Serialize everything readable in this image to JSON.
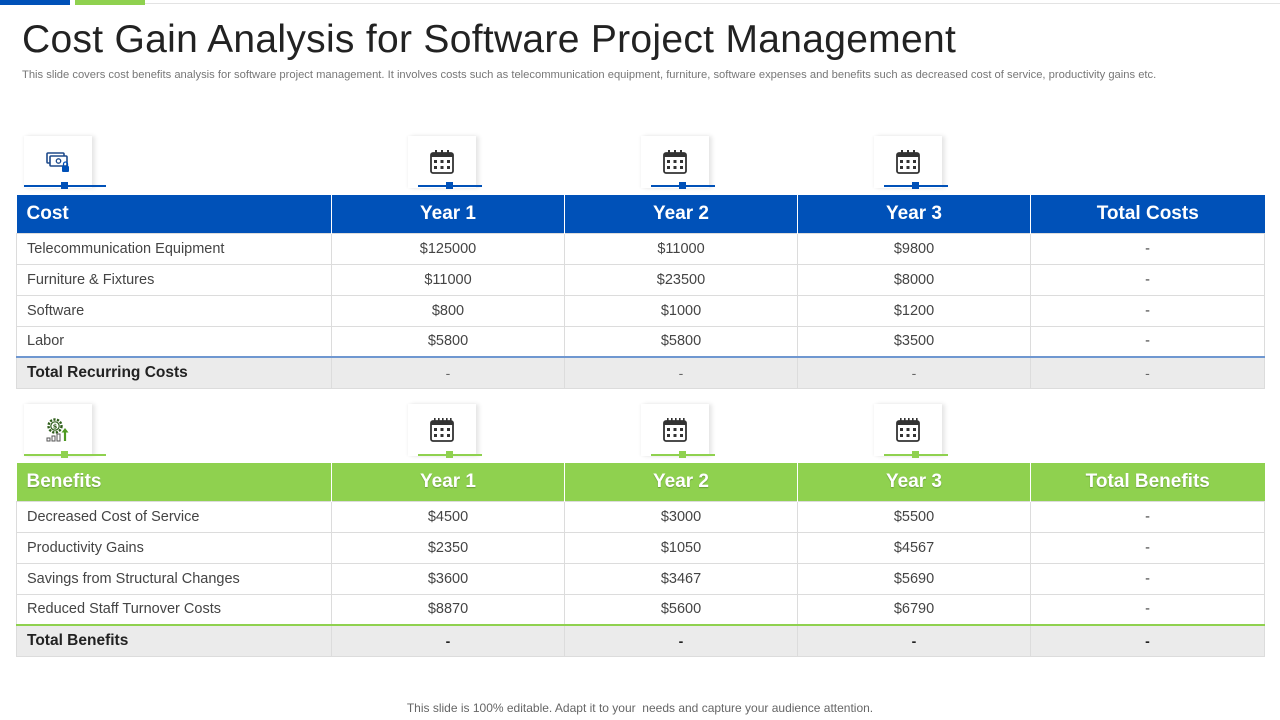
{
  "slide": {
    "title": "Cost Gain Analysis for Software Project Management",
    "subtitle": "This slide covers cost benefits analysis for software project management. It involves costs such as telecommunication equipment, furniture, software expenses and benefits such as decreased cost of service, productivity gains etc.",
    "footer": "This slide is 100% editable. Adapt it to your  needs and capture your audience attention."
  },
  "colors": {
    "cost_accent": "#0051b8",
    "benefit_accent": "#8fd14f"
  },
  "icons": {
    "costs": [
      "money-lock-icon",
      "calendar-icon",
      "calendar-icon",
      "calendar-icon"
    ],
    "benefits": [
      "gear-dollar-growth-icon",
      "calendar-icon",
      "calendar-icon",
      "calendar-icon"
    ]
  },
  "costs": {
    "headers": [
      "Cost",
      "Year 1",
      "Year 2",
      "Year 3",
      "Total Costs"
    ],
    "rows": [
      [
        "Telecommunication Equipment",
        "$125000",
        "$11000",
        "$9800",
        "-"
      ],
      [
        "Furniture & Fixtures",
        "$11000",
        "$23500",
        "$8000",
        "-"
      ],
      [
        "Software",
        "$800",
        "$1000",
        "$1200",
        "-"
      ],
      [
        "Labor",
        "$5800",
        "$5800",
        "$3500",
        "-"
      ]
    ],
    "total": [
      "Total Recurring Costs",
      "-",
      "-",
      "-",
      "-"
    ]
  },
  "benefits": {
    "headers": [
      "Benefits",
      "Year 1",
      "Year 2",
      "Year 3",
      "Total Benefits"
    ],
    "rows": [
      [
        "Decreased Cost of Service",
        "$4500",
        "$3000",
        "$5500",
        "-"
      ],
      [
        "Productivity Gains",
        "$2350",
        "$1050",
        "$4567",
        "-"
      ],
      [
        "Savings from Structural Changes",
        "$3600",
        "$3467",
        "$5690",
        "-"
      ],
      [
        "Reduced Staff Turnover Costs",
        "$8870",
        "$5600",
        "$6790",
        "-"
      ]
    ],
    "total": [
      "Total Benefits",
      "-",
      "-",
      "-",
      "-"
    ]
  }
}
